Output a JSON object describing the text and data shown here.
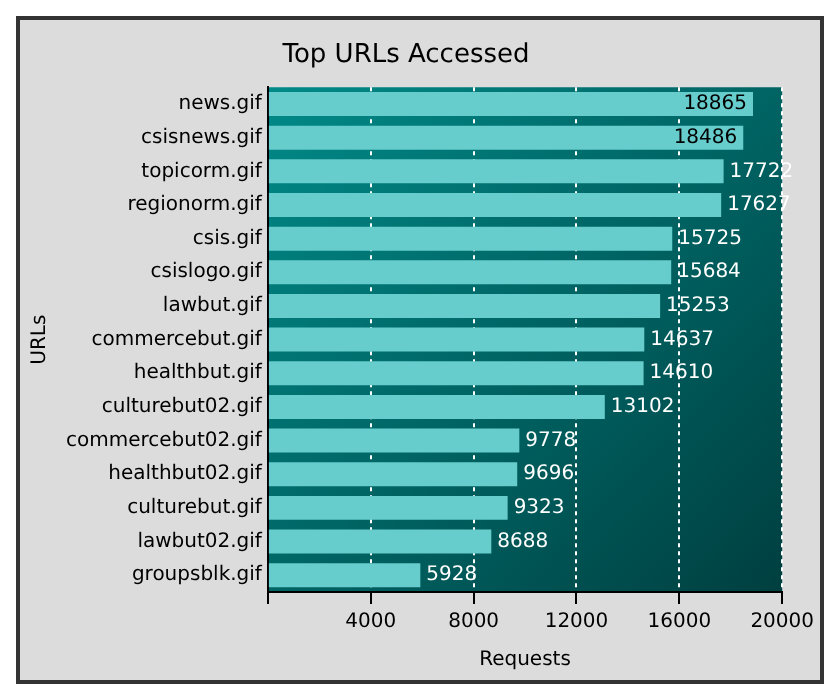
{
  "chart_data": {
    "type": "bar",
    "orientation": "horizontal",
    "title": "Top URLs Accessed",
    "xlabel": "Requests",
    "ylabel": "URLs",
    "categories": [
      "news.gif",
      "csisnews.gif",
      "topicorm.gif",
      "regionorm.gif",
      "csis.gif",
      "csislogo.gif",
      "lawbut.gif",
      "commercebut.gif",
      "healthbut.gif",
      "culturebut02.gif",
      "commercebut02.gif",
      "healthbut02.gif",
      "culturebut.gif",
      "lawbut02.gif",
      "groupsblk.gif"
    ],
    "values": [
      18865,
      18486,
      17722,
      17627,
      15725,
      15684,
      15253,
      14637,
      14610,
      13102,
      9778,
      9696,
      9323,
      8688,
      5928
    ],
    "color": "#66cccc",
    "xlim": [
      0,
      20000
    ],
    "xticks": [
      {
        "value": 0,
        "label": null
      },
      4000,
      8000,
      12000,
      16000,
      20000
    ],
    "grid": "x",
    "data_labels": true
  }
}
